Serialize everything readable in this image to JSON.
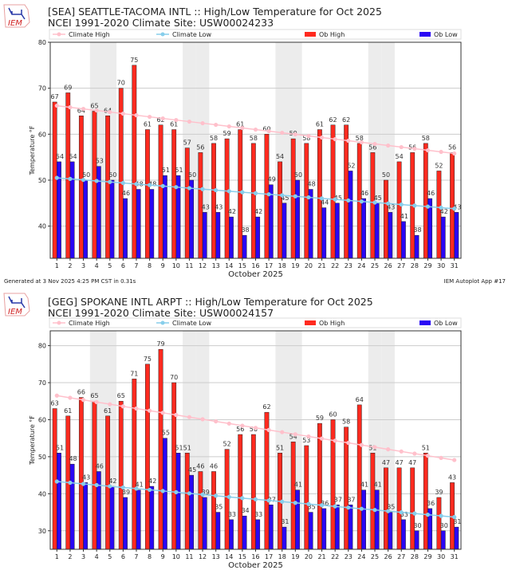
{
  "footer": {
    "generated": "Generated at 3 Nov 2025 4:25 PM CST in 0.31s",
    "app": "IEM Autoplot App #17"
  },
  "logo_text": "IEM",
  "colors": {
    "climate_high": "#ffc0cb",
    "climate_low": "#87ceeb",
    "ob_high": "#ff2a1f",
    "ob_low": "#2a06f4",
    "weekend_shade": "#ececec"
  },
  "chart_data": [
    {
      "type": "bar",
      "title": "[SEA] SEATTLE-TACOMA INTL :: High/Low Temperature for Oct 2025",
      "subtitle": "NCEI 1991-2020 Climate Site: USW00024233",
      "xlabel": "October 2025",
      "ylabel": "Temperature °F",
      "ylim": [
        33,
        80
      ],
      "yticks": [
        40,
        50,
        60,
        70,
        80
      ],
      "grid": true,
      "legend_placement": "top",
      "weekend_shaded_days": [
        4,
        5,
        11,
        12,
        18,
        19,
        25,
        26
      ],
      "categories": [
        1,
        2,
        3,
        4,
        5,
        6,
        7,
        8,
        9,
        10,
        11,
        12,
        13,
        14,
        15,
        16,
        17,
        18,
        19,
        20,
        21,
        22,
        23,
        24,
        25,
        26,
        27,
        28,
        29,
        30,
        31
      ],
      "series": [
        {
          "name": "Climate High",
          "kind": "line",
          "start": 66.2,
          "end": 55.8
        },
        {
          "name": "Climate Low",
          "kind": "line",
          "start": 50.5,
          "end": 43.8
        },
        {
          "name": "Ob High",
          "kind": "bar",
          "values": [
            67,
            69,
            64,
            65,
            64,
            70,
            75,
            61,
            62,
            61,
            57,
            56,
            58,
            59,
            61,
            58,
            60,
            54,
            59,
            58,
            61,
            62,
            62,
            58,
            56,
            50,
            54,
            56,
            58,
            52,
            56
          ]
        },
        {
          "name": "Ob Low",
          "kind": "bar",
          "values": [
            54,
            54,
            50,
            53,
            50,
            46,
            48,
            48,
            51,
            51,
            50,
            43,
            43,
            42,
            38,
            42,
            49,
            45,
            50,
            48,
            44,
            45,
            52,
            46,
            45,
            43,
            41,
            38,
            46,
            42,
            43
          ]
        }
      ]
    },
    {
      "type": "bar",
      "title": "[GEG] SPOKANE INTL ARPT :: High/Low Temperature for Oct 2025",
      "subtitle": "NCEI 1991-2020 Climate Site: USW00024157",
      "xlabel": "October 2025",
      "ylabel": "Temperature °F",
      "ylim": [
        25,
        84
      ],
      "yticks": [
        30,
        40,
        50,
        60,
        70,
        80
      ],
      "grid": true,
      "legend_placement": "top",
      "weekend_shaded_days": [
        4,
        5,
        11,
        12,
        18,
        19,
        25,
        26
      ],
      "categories": [
        1,
        2,
        3,
        4,
        5,
        6,
        7,
        8,
        9,
        10,
        11,
        12,
        13,
        14,
        15,
        16,
        17,
        18,
        19,
        20,
        21,
        22,
        23,
        24,
        25,
        26,
        27,
        28,
        29,
        30,
        31
      ],
      "series": [
        {
          "name": "Climate High",
          "kind": "line",
          "start": 66.5,
          "end": 49.1
        },
        {
          "name": "Climate Low",
          "kind": "line",
          "start": 43.3,
          "end": 33.7
        },
        {
          "name": "Ob High",
          "kind": "bar",
          "values": [
            63,
            61,
            66,
            65,
            61,
            65,
            71,
            75,
            79,
            70,
            51,
            46,
            46,
            52,
            56,
            56,
            62,
            51,
            54,
            53,
            59,
            60,
            58,
            64,
            51,
            47,
            47,
            47,
            51,
            39,
            43
          ]
        },
        {
          "name": "Ob Low",
          "kind": "bar",
          "values": [
            51,
            48,
            43,
            46,
            42,
            39,
            41,
            42,
            55,
            51,
            45,
            39,
            35,
            33,
            34,
            33,
            37,
            31,
            41,
            35,
            36,
            37,
            37,
            41,
            41,
            35,
            33,
            30,
            36,
            30,
            31
          ]
        }
      ]
    }
  ]
}
